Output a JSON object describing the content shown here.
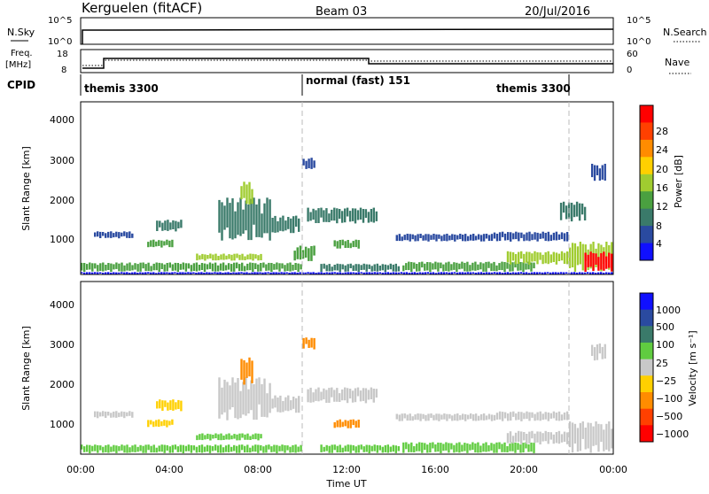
{
  "header": {
    "station": "Kerguelen (fitACF)",
    "beam": "Beam 03",
    "date": "20/Jul/2016"
  },
  "nsky_panel": {
    "left_label": "N.Sky",
    "right_label": "N.Search",
    "left_ticks": [
      "10^5",
      "10^0"
    ],
    "right_ticks": [
      "10^5",
      "10^0"
    ]
  },
  "freq_panel": {
    "left_label_line1": "Freq.",
    "left_label_line2": "[MHz]",
    "right_label": "Nave",
    "left_ticks": [
      "18",
      "8"
    ],
    "right_ticks": [
      "60",
      "0"
    ]
  },
  "cpid_panel": {
    "label": "CPID",
    "segments": [
      {
        "name": "themis 3300",
        "start_hour": 0,
        "end_hour": 10
      },
      {
        "name": "normal (fast) 151",
        "start_hour": 10,
        "end_hour": 22
      },
      {
        "name": "themis 3300",
        "start_hour": 22,
        "end_hour": 24
      }
    ]
  },
  "x_axis": {
    "label": "Time UT",
    "ticks": [
      "00:00",
      "04:00",
      "08:00",
      "12:00",
      "16:00",
      "20:00",
      "00:00"
    ]
  },
  "colors": {
    "power": [
      "#1010ff",
      "#2a4aa0",
      "#3a7a6a",
      "#4aa040",
      "#a0cc30",
      "#ffd000",
      "#ff8c00",
      "#ff4000",
      "#ff0000"
    ],
    "velocity": [
      "#1010ff",
      "#2a4aa0",
      "#3a7a6a",
      "#60cc40",
      "#c8c8c8",
      "#ffd000",
      "#ff8c00",
      "#ff4000",
      "#ff0000"
    ]
  },
  "chart_data": [
    {
      "type": "heatmap",
      "name": "power",
      "xlabel": "Time UT",
      "ylabel": "Slant Range [km]",
      "xlim": [
        0,
        24
      ],
      "ylim": [
        180,
        4500
      ],
      "y_ticks": [
        "1000",
        "2000",
        "3000",
        "4000"
      ],
      "colorbar": {
        "label": "Power [dB]",
        "ticks": [
          "4",
          "8",
          "12",
          "16",
          "20",
          "24",
          "28"
        ]
      },
      "regions": [
        {
          "t": [
            0.0,
            24.0
          ],
          "r": [
            180,
            240
          ],
          "level": 0
        },
        {
          "t": [
            0.0,
            10.0
          ],
          "r": [
            240,
            480
          ],
          "level": 3
        },
        {
          "t": [
            0.6,
            2.4
          ],
          "r": [
            1080,
            1260
          ],
          "level": 1
        },
        {
          "t": [
            3.4,
            4.6
          ],
          "r": [
            1250,
            1550
          ],
          "level": 2
        },
        {
          "t": [
            3.0,
            4.2
          ],
          "r": [
            850,
            1050
          ],
          "level": 3
        },
        {
          "t": [
            5.2,
            8.2
          ],
          "r": [
            520,
            700
          ],
          "level": 4
        },
        {
          "t": [
            6.2,
            8.6
          ],
          "r": [
            1000,
            2100
          ],
          "level": 2
        },
        {
          "t": [
            7.2,
            7.8
          ],
          "r": [
            1900,
            2500
          ],
          "level": 4
        },
        {
          "t": [
            8.6,
            9.9
          ],
          "r": [
            1200,
            1650
          ],
          "level": 2
        },
        {
          "t": [
            9.6,
            10.6
          ],
          "r": [
            500,
            900
          ],
          "level": 3
        },
        {
          "t": [
            10.2,
            13.4
          ],
          "r": [
            1450,
            1850
          ],
          "level": 2
        },
        {
          "t": [
            11.4,
            12.6
          ],
          "r": [
            820,
            1050
          ],
          "level": 3
        },
        {
          "t": [
            10.8,
            14.4
          ],
          "r": [
            240,
            450
          ],
          "level": 2
        },
        {
          "t": [
            14.2,
            18.6
          ],
          "r": [
            1000,
            1200
          ],
          "level": 1
        },
        {
          "t": [
            14.5,
            20.5
          ],
          "r": [
            240,
            500
          ],
          "level": 3
        },
        {
          "t": [
            19.2,
            22.0
          ],
          "r": [
            420,
            760
          ],
          "level": 4
        },
        {
          "t": [
            18.6,
            22.0
          ],
          "r": [
            1000,
            1250
          ],
          "level": 1
        },
        {
          "t": [
            21.6,
            22.8
          ],
          "r": [
            1500,
            2000
          ],
          "level": 2
        },
        {
          "t": [
            22.0,
            24.0
          ],
          "r": [
            240,
            1000
          ],
          "level": 4
        },
        {
          "t": [
            22.7,
            24.0
          ],
          "r": [
            240,
            750
          ],
          "level": 8
        },
        {
          "t": [
            23.0,
            23.7
          ],
          "r": [
            2500,
            2950
          ],
          "level": 1
        },
        {
          "t": [
            10.0,
            10.6
          ],
          "r": [
            2800,
            3100
          ],
          "level": 1
        }
      ]
    },
    {
      "type": "heatmap",
      "name": "velocity",
      "xlabel": "Time UT",
      "ylabel": "Slant Range [km]",
      "xlim": [
        0,
        24
      ],
      "ylim": [
        180,
        4500
      ],
      "y_ticks": [
        "1000",
        "2000",
        "3000",
        "4000"
      ],
      "colorbar": {
        "label": "Velocity [m s⁻¹]",
        "ticks": [
          "1000",
          "500",
          "100",
          "25",
          "−25",
          "−100",
          "−500",
          "−1000"
        ]
      },
      "regions": [
        {
          "t": [
            0.0,
            10.0
          ],
          "r": [
            200,
            420
          ],
          "level": 3
        },
        {
          "t": [
            0.6,
            2.4
          ],
          "r": [
            1080,
            1260
          ],
          "level": 4
        },
        {
          "t": [
            3.4,
            4.6
          ],
          "r": [
            1250,
            1550
          ],
          "level": 5
        },
        {
          "t": [
            3.0,
            4.2
          ],
          "r": [
            850,
            1050
          ],
          "level": 5
        },
        {
          "t": [
            5.2,
            8.2
          ],
          "r": [
            520,
            700
          ],
          "level": 3
        },
        {
          "t": [
            6.2,
            8.6
          ],
          "r": [
            1000,
            2100
          ],
          "level": 4
        },
        {
          "t": [
            7.2,
            7.8
          ],
          "r": [
            1900,
            2600
          ],
          "level": 6
        },
        {
          "t": [
            8.6,
            9.9
          ],
          "r": [
            1200,
            1650
          ],
          "level": 4
        },
        {
          "t": [
            10.2,
            13.4
          ],
          "r": [
            1450,
            1850
          ],
          "level": 4
        },
        {
          "t": [
            11.4,
            12.6
          ],
          "r": [
            820,
            1050
          ],
          "level": 6
        },
        {
          "t": [
            10.8,
            14.4
          ],
          "r": [
            200,
            420
          ],
          "level": 3
        },
        {
          "t": [
            14.2,
            18.6
          ],
          "r": [
            1000,
            1200
          ],
          "level": 4
        },
        {
          "t": [
            14.5,
            20.5
          ],
          "r": [
            200,
            480
          ],
          "level": 3
        },
        {
          "t": [
            19.2,
            22.0
          ],
          "r": [
            420,
            760
          ],
          "level": 4
        },
        {
          "t": [
            18.6,
            22.0
          ],
          "r": [
            1000,
            1250
          ],
          "level": 4
        },
        {
          "t": [
            22.0,
            24.0
          ],
          "r": [
            200,
            1000
          ],
          "level": 4
        },
        {
          "t": [
            23.0,
            23.7
          ],
          "r": [
            2500,
            2950
          ],
          "level": 4
        },
        {
          "t": [
            10.0,
            10.6
          ],
          "r": [
            2800,
            3100
          ],
          "level": 6
        }
      ]
    }
  ]
}
